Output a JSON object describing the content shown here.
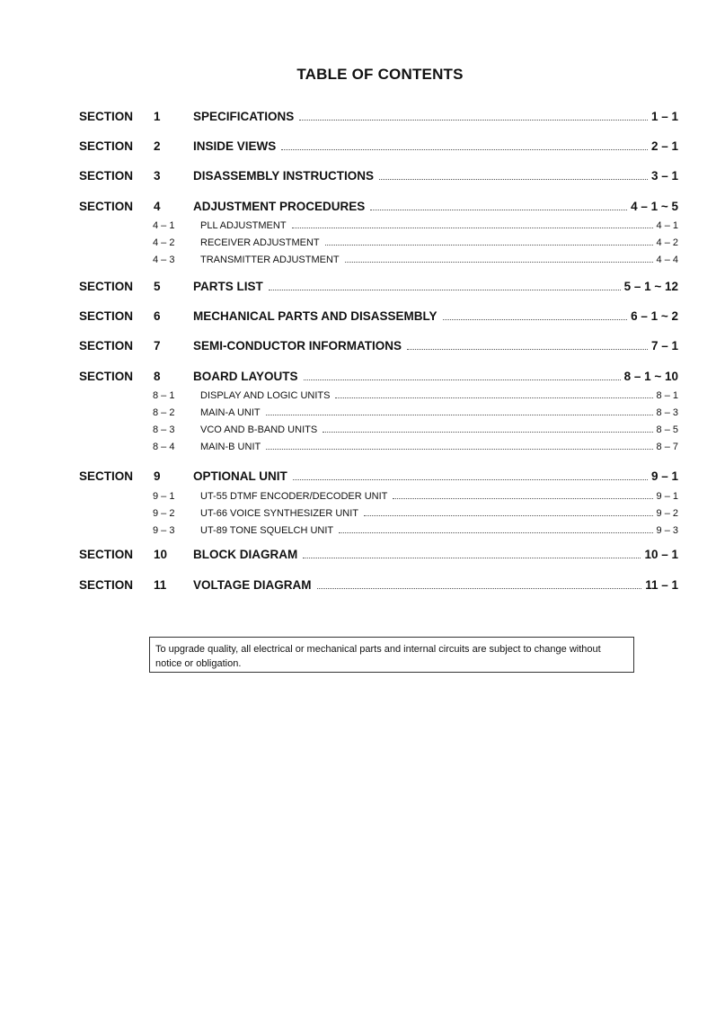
{
  "title": "TABLE OF CONTENTS",
  "section_label": "SECTION",
  "entries": [
    {
      "num": "1",
      "title": "SPECIFICATIONS",
      "page": "1 – 1",
      "subs": []
    },
    {
      "num": "2",
      "title": "INSIDE VIEWS",
      "page": "2 – 1",
      "subs": []
    },
    {
      "num": "3",
      "title": "DISASSEMBLY INSTRUCTIONS",
      "page": "3 – 1",
      "subs": []
    },
    {
      "num": "4",
      "title": "ADJUSTMENT PROCEDURES",
      "page": "4 – 1 ~ 5",
      "subs": [
        {
          "num": "4 – 1",
          "title": "PLL ADJUSTMENT",
          "page": "4 – 1"
        },
        {
          "num": "4 – 2",
          "title": "RECEIVER ADJUSTMENT",
          "page": "4 – 2"
        },
        {
          "num": "4 – 3",
          "title": "TRANSMITTER ADJUSTMENT",
          "page": "4 – 4"
        }
      ]
    },
    {
      "num": "5",
      "title": "PARTS LIST",
      "page": "5 – 1 ~ 12",
      "subs": []
    },
    {
      "num": "6",
      "title": "MECHANICAL PARTS AND DISASSEMBLY",
      "page": "6 – 1 ~ 2",
      "subs": []
    },
    {
      "num": "7",
      "title": "SEMI-CONDUCTOR INFORMATIONS",
      "page": "7 – 1",
      "subs": []
    },
    {
      "num": "8",
      "title": "BOARD LAYOUTS",
      "page": "8 – 1 ~ 10",
      "subs": [
        {
          "num": "8 – 1",
          "title": "DISPLAY AND LOGIC UNITS",
          "page": "8 – 1"
        },
        {
          "num": "8 – 2",
          "title": "MAIN-A UNIT",
          "page": "8 – 3"
        },
        {
          "num": "8 – 3",
          "title": "VCO AND B-BAND UNITS",
          "page": "8 – 5"
        },
        {
          "num": "8 – 4",
          "title": "MAIN-B UNIT",
          "page": "8 – 7"
        }
      ]
    },
    {
      "num": "9",
      "title": "OPTIONAL UNIT",
      "page": "9 – 1",
      "subs": [
        {
          "num": "9 – 1",
          "title": "UT-55 DTMF ENCODER/DECODER UNIT",
          "page": "9 – 1"
        },
        {
          "num": "9 – 2",
          "title": "UT-66 VOICE SYNTHESIZER UNIT",
          "page": "9 – 2"
        },
        {
          "num": "9 – 3",
          "title": "UT-89 TONE SQUELCH UNIT",
          "page": "9 – 3"
        }
      ]
    },
    {
      "num": "10",
      "title": "BLOCK DIAGRAM",
      "page": "10 – 1",
      "subs": []
    },
    {
      "num": "11",
      "title": "VOLTAGE DIAGRAM",
      "page": "11 – 1",
      "subs": []
    }
  ],
  "notice": "To upgrade quality, all electrical or mechanical parts and internal circuits are subject to change without notice or obligation."
}
